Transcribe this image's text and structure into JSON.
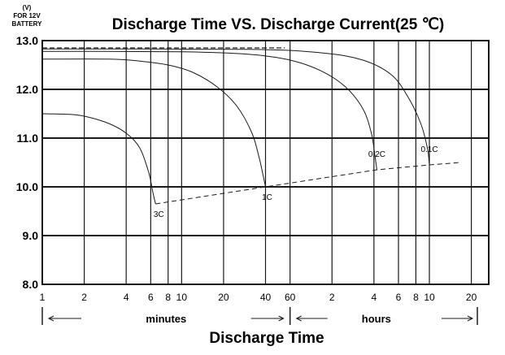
{
  "chart_data": {
    "type": "line",
    "title": "Discharge Time VS. Discharge Current(25 ℃)",
    "y_unit_label": "(V)",
    "y_note_line1": "FOR 12V",
    "y_note_line2": "BATTERY",
    "xlabel": "Discharge Time",
    "x_scale": "log",
    "ylim": [
      8.0,
      13.0
    ],
    "yticks": [
      "8.0",
      "9.0",
      "10.0",
      "11.0",
      "12.0",
      "13.0"
    ],
    "x_ticks": [
      {
        "label": "1",
        "minutes": 1
      },
      {
        "label": "2",
        "minutes": 2
      },
      {
        "label": "4",
        "minutes": 4
      },
      {
        "label": "6",
        "minutes": 6
      },
      {
        "label": "8",
        "minutes": 8
      },
      {
        "label": "10",
        "minutes": 10
      },
      {
        "label": "20",
        "minutes": 20
      },
      {
        "label": "40",
        "minutes": 40
      },
      {
        "label": "60",
        "minutes": 60
      },
      {
        "label": "2",
        "minutes": 120
      },
      {
        "label": "4",
        "minutes": 240
      },
      {
        "label": "6",
        "minutes": 360
      },
      {
        "label": "8",
        "minutes": 480
      },
      {
        "label": "10",
        "minutes": 600
      },
      {
        "label": "20",
        "minutes": 1200
      }
    ],
    "grid": true,
    "unit_bands": [
      {
        "label": "minutes",
        "from_minutes": 1,
        "to_minutes": 60
      },
      {
        "label": "hours",
        "from_minutes": 60,
        "to_minutes": 1200
      }
    ],
    "series": [
      {
        "name": "3C",
        "color": "#1a1a1a",
        "points": [
          [
            1,
            11.5
          ],
          [
            1.5,
            11.49
          ],
          [
            2,
            11.45
          ],
          [
            3,
            11.3
          ],
          [
            4,
            11.1
          ],
          [
            5,
            10.8
          ],
          [
            5.8,
            10.3
          ],
          [
            6.2,
            9.9
          ],
          [
            6.5,
            9.65
          ]
        ]
      },
      {
        "name": "1C",
        "color": "#1a1a1a",
        "points": [
          [
            1,
            12.62
          ],
          [
            3,
            12.62
          ],
          [
            5,
            12.58
          ],
          [
            8,
            12.5
          ],
          [
            12,
            12.35
          ],
          [
            18,
            12.05
          ],
          [
            25,
            11.65
          ],
          [
            32,
            11.1
          ],
          [
            36,
            10.6
          ],
          [
            38,
            10.3
          ],
          [
            40,
            10.0
          ]
        ]
      },
      {
        "name": "0.2C",
        "color": "#1a1a1a",
        "points": [
          [
            1,
            12.78
          ],
          [
            10,
            12.77
          ],
          [
            30,
            12.72
          ],
          [
            60,
            12.6
          ],
          [
            100,
            12.38
          ],
          [
            150,
            12.05
          ],
          [
            200,
            11.6
          ],
          [
            230,
            11.1
          ],
          [
            245,
            10.6
          ],
          [
            252,
            10.35
          ]
        ]
      },
      {
        "name": "0.1C",
        "color": "#1a1a1a",
        "points": [
          [
            1,
            12.83
          ],
          [
            30,
            12.82
          ],
          [
            100,
            12.75
          ],
          [
            200,
            12.6
          ],
          [
            320,
            12.3
          ],
          [
            420,
            11.85
          ],
          [
            520,
            11.3
          ],
          [
            580,
            10.8
          ],
          [
            600,
            10.45
          ]
        ]
      }
    ],
    "cutoff_line": {
      "style": "dashed",
      "points": [
        [
          6.5,
          9.65
        ],
        [
          40,
          10.0
        ],
        [
          252,
          10.35
        ],
        [
          600,
          10.45
        ],
        [
          1000,
          10.5
        ]
      ]
    },
    "reference_line": {
      "style": "dashed",
      "y": 12.85,
      "x_from_minutes": 1,
      "x_to_minutes": 55
    }
  }
}
